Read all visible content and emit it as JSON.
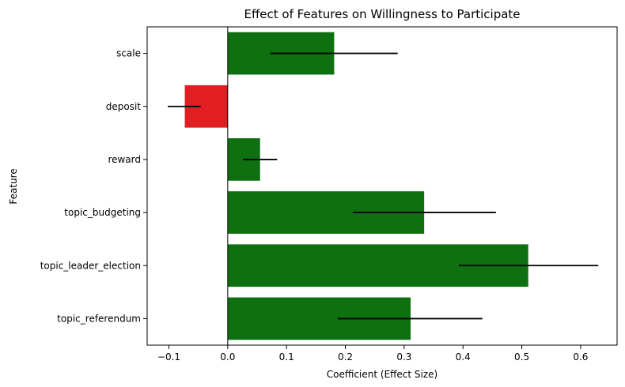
{
  "chart_data": {
    "type": "bar",
    "orientation": "horizontal",
    "title": "Effect of Features on Willingness to Participate",
    "xlabel": "Coefficient (Effect Size)",
    "ylabel": "Feature",
    "categories": [
      "scale",
      "deposit",
      "reward",
      "topic_budgeting",
      "topic_leader_election",
      "topic_referendum"
    ],
    "values": [
      0.181,
      -0.073,
      0.055,
      0.334,
      0.511,
      0.311
    ],
    "error_low": [
      0.072,
      -0.102,
      0.026,
      0.213,
      0.393,
      0.187
    ],
    "error_high": [
      0.289,
      -0.046,
      0.084,
      0.456,
      0.63,
      0.433
    ],
    "xlim": [
      -0.137,
      0.662
    ],
    "xticks": [
      -0.1,
      0.0,
      0.1,
      0.2,
      0.3,
      0.4,
      0.5,
      0.6
    ],
    "xtick_labels": [
      "−0.1",
      "0.0",
      "0.1",
      "0.2",
      "0.3",
      "0.4",
      "0.5",
      "0.6"
    ],
    "zero_line": true,
    "grid": false,
    "colors": {
      "positive": "#0e7010",
      "negative": "#e11e22",
      "error_bar": "#000000",
      "zero_line": "#000000"
    }
  }
}
